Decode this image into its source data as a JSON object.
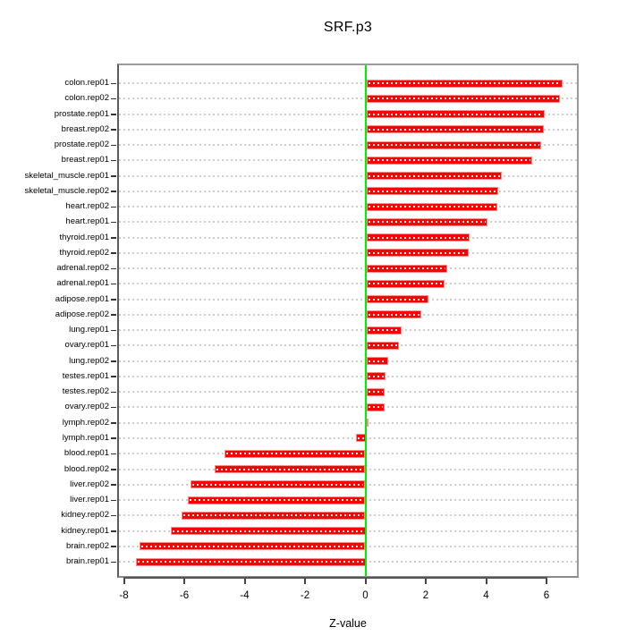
{
  "title": "SRF.p3",
  "xlabel": "Z-value",
  "colors": {
    "bar": "#ff0000",
    "bar_border": "#ff8f8f",
    "zero_line": "#00ee00",
    "gridline": "#cdcdcd",
    "box": "#9a9a9a",
    "text": "#000000"
  },
  "chart_data": {
    "type": "bar",
    "orientation": "horizontal",
    "title": "SRF.p3",
    "xlabel": "Z-value",
    "ylabel": "",
    "grid": true,
    "sorted": "descending",
    "xlim": [
      -8.2,
      7.0
    ],
    "x_ticks": {
      "labels": [
        "-8",
        "-6",
        "-4",
        "-2",
        "0",
        "2",
        "4",
        "6"
      ],
      "values": [
        -8,
        -6,
        -4,
        -2,
        0,
        2,
        4,
        6
      ]
    },
    "categories": [
      "colon.rep01",
      "colon.rep02",
      "prostate.rep01",
      "breast.rep02",
      "prostate.rep02",
      "breast.rep01",
      "skeletal_muscle.rep01",
      "skeletal_muscle.rep02",
      "heart.rep02",
      "heart.rep01",
      "thyroid.rep01",
      "thyroid.rep02",
      "adrenal.rep02",
      "adrenal.rep01",
      "adipose.rep01",
      "adipose.rep02",
      "lung.rep01",
      "ovary.rep01",
      "lung.rep02",
      "testes.rep01",
      "testes.rep02",
      "ovary.rep02",
      "lymph.rep02",
      "lymph.rep01",
      "blood.rep01",
      "blood.rep02",
      "liver.rep02",
      "liver.rep01",
      "kidney.rep02",
      "kidney.rep01",
      "brain.rep02",
      "brain.rep01"
    ],
    "values": [
      6.5,
      6.4,
      5.91,
      5.87,
      5.79,
      5.5,
      4.5,
      4.36,
      4.33,
      4.0,
      3.42,
      3.4,
      2.68,
      2.59,
      2.05,
      1.82,
      1.17,
      1.08,
      0.72,
      0.63,
      0.61,
      0.6,
      0.03,
      -0.3,
      -4.66,
      -4.99,
      -5.79,
      -5.87,
      -6.09,
      -6.45,
      -7.48,
      -7.6
    ]
  }
}
